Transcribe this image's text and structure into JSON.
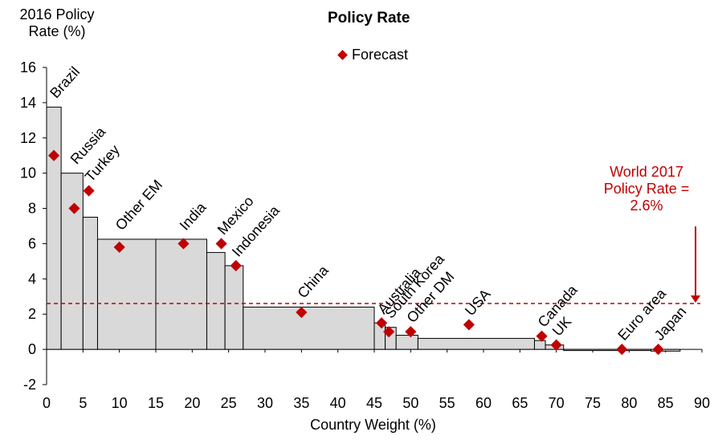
{
  "chart_data": {
    "type": "bar",
    "title": "Policy Rate",
    "ylabel": "2016 Policy Rate (%)",
    "xlabel": "Country Weight (%)",
    "xlim": [
      0,
      90
    ],
    "ylim": [
      -2,
      16
    ],
    "xticks": [
      0,
      5,
      10,
      15,
      20,
      25,
      30,
      35,
      40,
      45,
      50,
      55,
      60,
      65,
      70,
      75,
      80,
      85,
      90
    ],
    "yticks": [
      -2,
      0,
      2,
      4,
      6,
      8,
      10,
      12,
      14,
      16
    ],
    "legend": {
      "label": "Forecast",
      "placement": "top-center"
    },
    "bars": [
      {
        "name": "Brazil",
        "x0": 0,
        "x1": 2,
        "value": 13.75,
        "forecast": 11.0,
        "forecast_x": 1.0
      },
      {
        "name": "Russia",
        "x0": 2,
        "x1": 5,
        "value": 10.0,
        "forecast": 8.0,
        "forecast_x": 3.8
      },
      {
        "name": "Turkey",
        "x0": 5,
        "x1": 7,
        "value": 7.5,
        "forecast": 9.0,
        "forecast_x": 5.8
      },
      {
        "name": "Other EM",
        "x0": 7,
        "x1": 15,
        "value": 6.25,
        "forecast": 5.8,
        "forecast_x": 10.0
      },
      {
        "name": "India",
        "x0": 15,
        "x1": 22,
        "value": 6.25,
        "forecast": 6.0,
        "forecast_x": 18.8
      },
      {
        "name": "Mexico",
        "x0": 22,
        "x1": 24.5,
        "value": 5.5,
        "forecast": 6.0,
        "forecast_x": 24.0
      },
      {
        "name": "Indonesia",
        "x0": 24.5,
        "x1": 27,
        "value": 4.75,
        "forecast": 4.75,
        "forecast_x": 26.0
      },
      {
        "name": "China",
        "x0": 27,
        "x1": 45,
        "value": 2.4,
        "forecast": 2.1,
        "forecast_x": 35.0
      },
      {
        "name": "Australia",
        "x0": 45,
        "x1": 46.5,
        "value": 1.5,
        "forecast": 1.5,
        "forecast_x": 46.0
      },
      {
        "name": "South Korea",
        "x0": 46.5,
        "x1": 48,
        "value": 1.25,
        "forecast": 1.0,
        "forecast_x": 47.0
      },
      {
        "name": "Other DM",
        "x0": 48,
        "x1": 51,
        "value": 0.8,
        "forecast": 1.0,
        "forecast_x": 50.0
      },
      {
        "name": "USA",
        "x0": 51,
        "x1": 67,
        "value": 0.625,
        "forecast": 1.4,
        "forecast_x": 58.0
      },
      {
        "name": "Canada",
        "x0": 67,
        "x1": 68.5,
        "value": 0.5,
        "forecast": 0.75,
        "forecast_x": 68.0
      },
      {
        "name": "UK",
        "x0": 68.5,
        "x1": 71,
        "value": 0.25,
        "forecast": 0.25,
        "forecast_x": 70.0
      },
      {
        "name": "Euro area",
        "x0": 71,
        "x1": 83,
        "value": 0.0,
        "forecast": 0.0,
        "forecast_x": 79.0
      },
      {
        "name": "Japan",
        "x0": 83,
        "x1": 87,
        "value": -0.1,
        "forecast": 0.0,
        "forecast_x": 84.0
      }
    ],
    "reference_line": {
      "value": 2.6,
      "label": "World 2017 Policy Rate = 2.6%"
    },
    "colors": {
      "bar_fill": "#d9d9d9",
      "bar_edge": "#000000",
      "forecast": "#c00000",
      "reference": "#c00000"
    },
    "grid": false
  },
  "labels": {
    "ylabel_line1": "2016 Policy",
    "ylabel_line2": "Rate (%)",
    "title": "Policy Rate",
    "legend": "Forecast",
    "xlabel": "Country Weight (%)",
    "world_line1": "World 2017",
    "world_line2": "Policy Rate =",
    "world_line3": "2.6%"
  }
}
